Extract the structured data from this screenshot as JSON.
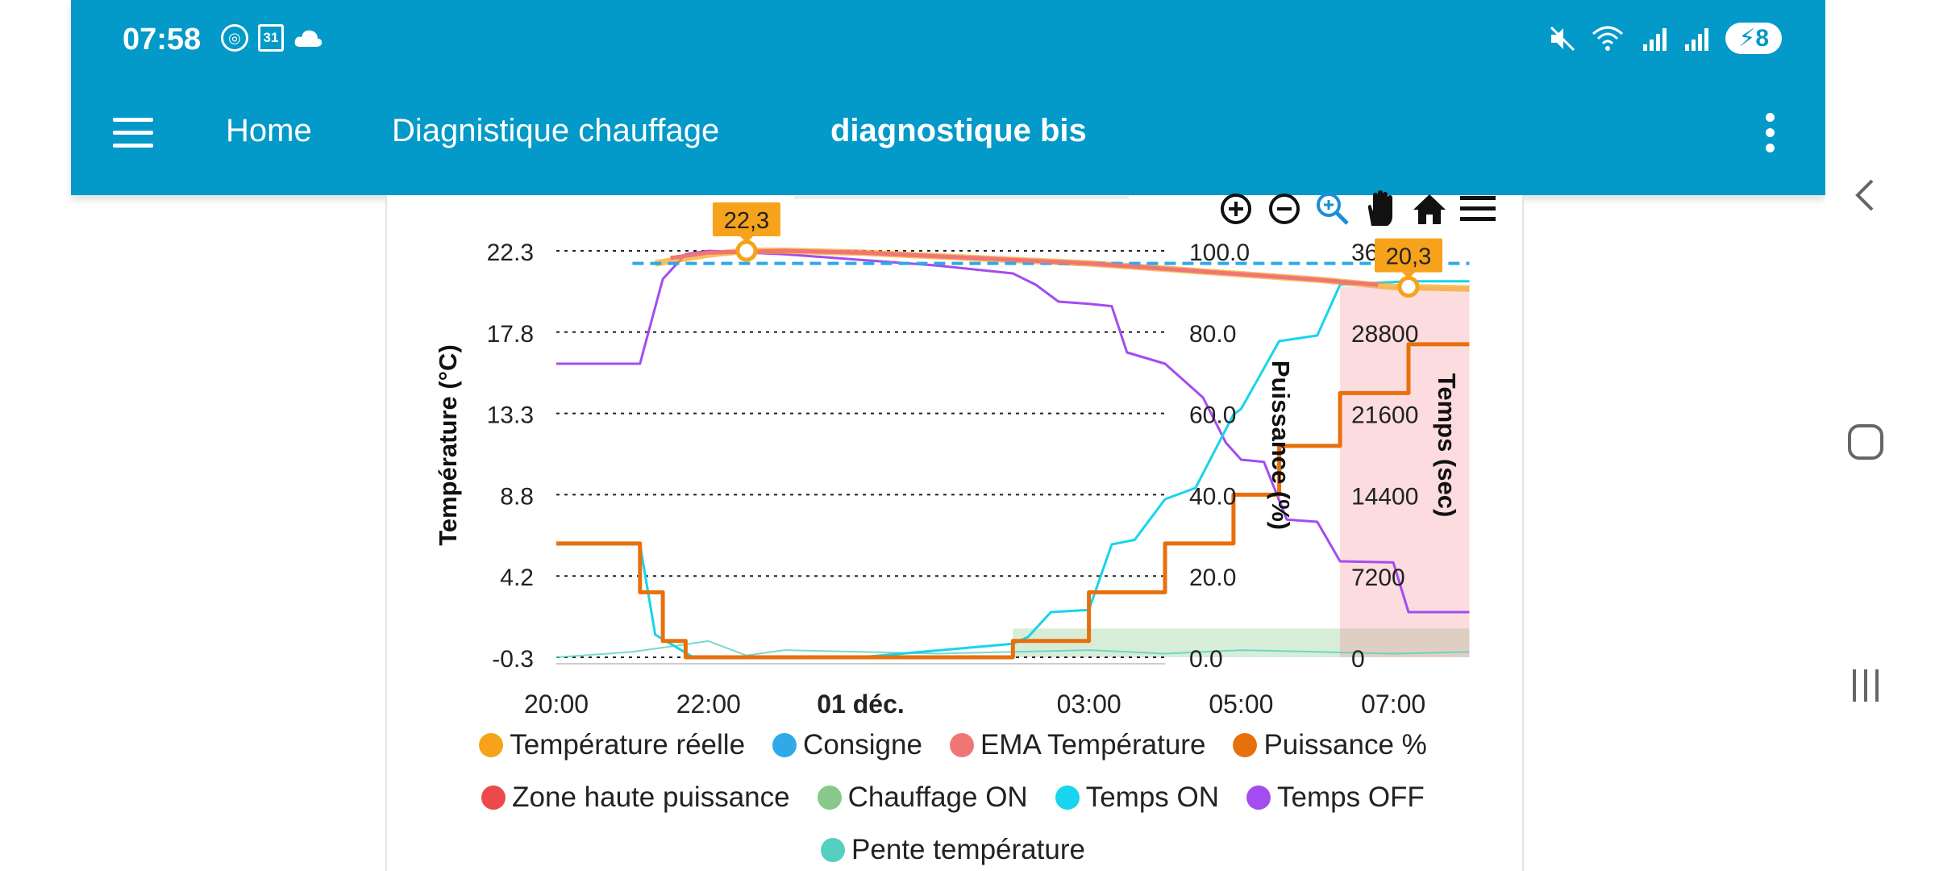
{
  "status_bar": {
    "time": "07:58",
    "calendar_day": "31",
    "battery_level": "8"
  },
  "toolbar": {
    "tabs": [
      {
        "label": "Home"
      },
      {
        "label": "Diagnistique chauffage"
      },
      {
        "label": "diagnostique bis"
      }
    ],
    "active_tab": "diagnostique bis"
  },
  "chart": {
    "left_axis_title": "Température (°C)",
    "mid_axis_title": "Puissance (%)",
    "right_axis_title": "Temps (sec)",
    "tooltip_max": "22,3",
    "tooltip_last": "20,3",
    "legend": [
      {
        "name": "Température réelle",
        "color": "#f7a21b"
      },
      {
        "name": "Consigne",
        "color": "#2fa9e8"
      },
      {
        "name": "EMA Température",
        "color": "#f07575"
      },
      {
        "name": "Puissance %",
        "color": "#e8700c"
      },
      {
        "name": "Zone haute puissance",
        "color": "#ec4a4a"
      },
      {
        "name": "Chauffage ON",
        "color": "#86c98a"
      },
      {
        "name": "Temps ON",
        "color": "#16d5ec"
      },
      {
        "name": "Temps OFF",
        "color": "#a34cf0"
      },
      {
        "name": "Pente température",
        "color": "#55cfc0"
      }
    ]
  },
  "chart_data": {
    "type": "line",
    "x_ticks": [
      "20:00",
      "22:00",
      "01 déc.",
      "03:00",
      "05:00",
      "07:00"
    ],
    "y_left_ticks": [
      "22.3",
      "17.8",
      "13.3",
      "8.8",
      "4.2",
      "-0.3"
    ],
    "y_mid_ticks": [
      "100.0",
      "80.0",
      "60.0",
      "40.0",
      "20.0",
      "0.0"
    ],
    "y_right_ticks": [
      "36000",
      "28800",
      "21600",
      "14400",
      "7200",
      "0"
    ],
    "ylim_left": [
      -0.3,
      22.3
    ],
    "ylim_mid": [
      0,
      100
    ],
    "ylim_right": [
      0,
      36000
    ],
    "grid": true,
    "series": [
      {
        "name": "Température réelle",
        "x": [
          21.3,
          22.0,
          22.5,
          23.0,
          24.0,
          1.0,
          2.0,
          3.0,
          4.0,
          5.0,
          6.0,
          7.0,
          8.0
        ],
        "values": [
          21.6,
          22.1,
          22.3,
          22.3,
          22.2,
          22.0,
          21.8,
          21.6,
          21.3,
          21.0,
          20.7,
          20.3,
          20.2
        ]
      },
      {
        "name": "Consigne",
        "x": [
          21.0,
          8.0
        ],
        "values": [
          21.6,
          21.6
        ]
      },
      {
        "name": "EMA Température",
        "x": [
          21.5,
          22.0,
          23.0,
          24.0,
          1.0,
          2.0,
          3.0,
          4.0,
          5.0,
          6.0,
          6.8
        ],
        "values": [
          21.9,
          22.2,
          22.3,
          22.2,
          22.0,
          21.8,
          21.6,
          21.3,
          21.0,
          20.7,
          20.4
        ]
      },
      {
        "name": "Puissance %",
        "x": [
          20.0,
          21.1,
          21.1,
          21.4,
          21.4,
          21.7,
          21.7,
          23.0,
          23.0,
          2.0,
          2.0,
          3.0,
          3.0,
          4.0,
          4.0,
          4.9,
          4.9,
          5.5,
          5.5,
          6.3,
          6.3,
          7.2,
          7.2,
          8.0
        ],
        "values": [
          28,
          28,
          16,
          16,
          4,
          4,
          0,
          0,
          0,
          0,
          4,
          4,
          16,
          16,
          28,
          28,
          40,
          40,
          52,
          52,
          65,
          65,
          77,
          77
        ]
      },
      {
        "name": "Temps ON",
        "x": [
          20.0,
          21.1,
          21.3,
          21.6,
          21.8,
          22.5,
          23.5,
          24.0,
          1.0,
          2.0,
          2.2,
          2.5,
          3.0,
          3.3,
          3.6,
          4.0,
          4.4,
          4.9,
          5.0,
          5.5,
          6.0,
          6.3,
          7.2,
          8.0
        ],
        "values": [
          10000,
          10000,
          2000,
          800,
          0,
          0,
          0,
          0,
          600,
          1200,
          1800,
          4000,
          4200,
          10000,
          10400,
          14000,
          15000,
          21500,
          22000,
          28000,
          28500,
          33000,
          33300,
          33300
        ]
      },
      {
        "name": "Temps OFF",
        "x": [
          20.0,
          21.1,
          21.2,
          21.4,
          21.7,
          22.0,
          23.0,
          24.0,
          1.0,
          2.0,
          2.3,
          2.6,
          3.0,
          3.3,
          3.5,
          4.0,
          4.5,
          4.8,
          5.0,
          5.3,
          5.6,
          6.0,
          6.3,
          7.0,
          7.2,
          8.0
        ],
        "values": [
          26000,
          26000,
          28500,
          33500,
          35700,
          36000,
          35700,
          35200,
          34700,
          34000,
          33000,
          31500,
          31300,
          31100,
          27000,
          26000,
          23000,
          19000,
          17500,
          17300,
          12200,
          12000,
          8500,
          8400,
          4000,
          4000
        ]
      },
      {
        "name": "Pente température",
        "x": [
          20.0,
          21.0,
          21.5,
          22.0,
          22.5,
          23.0,
          24.0,
          1.0,
          2.0,
          3.0,
          4.0,
          5.0,
          6.0,
          7.0,
          8.0
        ],
        "values": [
          -0.3,
          0.0,
          0.3,
          0.6,
          -0.2,
          0.1,
          0.0,
          -0.1,
          0.0,
          0.1,
          -0.1,
          0.1,
          0.0,
          -0.1,
          0.0
        ]
      }
    ],
    "bands": [
      {
        "name": "Chauffage ON",
        "x_start": 2.0,
        "x_end": 8.0,
        "top_left_value": 1.3
      },
      {
        "name": "Zone haute puissance",
        "x_start": 6.3,
        "x_end": 8.0,
        "top_left_value": 20.3
      }
    ],
    "markers": [
      {
        "label": "22,3",
        "x": 22.5,
        "value": 22.3
      },
      {
        "label": "20,3",
        "x": 7.2,
        "value": 20.3
      }
    ]
  }
}
